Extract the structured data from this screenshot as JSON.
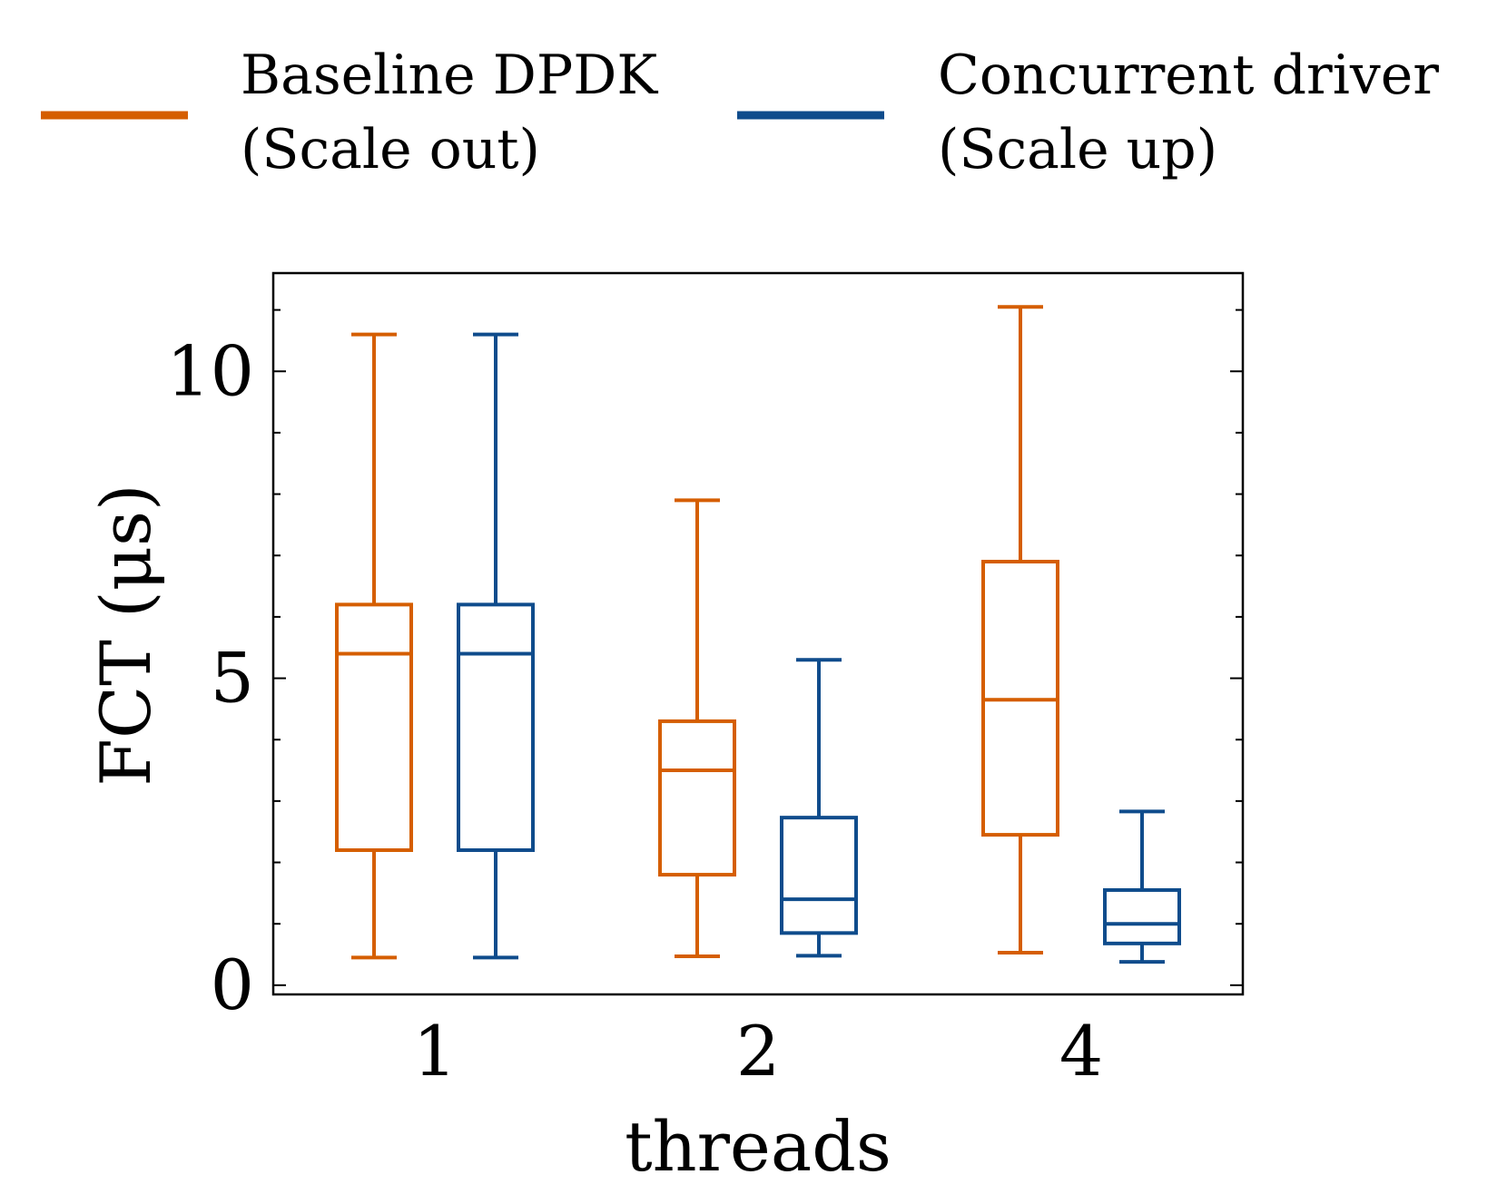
{
  "chart_data": {
    "type": "box",
    "title": "",
    "xlabel": "threads",
    "ylabel": "FCT (μs)",
    "ylim": [
      -0.15,
      11.6
    ],
    "yticks": [
      0,
      5,
      10
    ],
    "ytick_labels": [
      "0",
      "5",
      "10"
    ],
    "y_minor_step": 1,
    "categories": [
      "1",
      "2",
      "4"
    ],
    "legend_position": "top, above plot",
    "series": [
      {
        "name_line1": "Baseline DPDK",
        "name_line2": "(Scale out)",
        "color": "#D55E00",
        "boxes": [
          {
            "category": "1",
            "whisker_low": 0.45,
            "q1": 2.2,
            "median": 5.4,
            "q3": 6.2,
            "whisker_high": 10.6
          },
          {
            "category": "2",
            "whisker_low": 0.47,
            "q1": 1.8,
            "median": 3.5,
            "q3": 4.3,
            "whisker_high": 7.9
          },
          {
            "category": "4",
            "whisker_low": 0.53,
            "q1": 2.45,
            "median": 4.65,
            "q3": 6.9,
            "whisker_high": 11.05
          }
        ]
      },
      {
        "name_line1": "Concurrent driver",
        "name_line2": "(Scale up)",
        "color": "#0F4C8C",
        "boxes": [
          {
            "category": "1",
            "whisker_low": 0.45,
            "q1": 2.2,
            "median": 5.4,
            "q3": 6.2,
            "whisker_high": 10.6
          },
          {
            "category": "2",
            "whisker_low": 0.48,
            "q1": 0.85,
            "median": 1.4,
            "q3": 2.73,
            "whisker_high": 5.3
          },
          {
            "category": "4",
            "whisker_low": 0.38,
            "q1": 0.68,
            "median": 1.0,
            "q3": 1.55,
            "whisker_high": 2.83
          }
        ]
      }
    ]
  }
}
